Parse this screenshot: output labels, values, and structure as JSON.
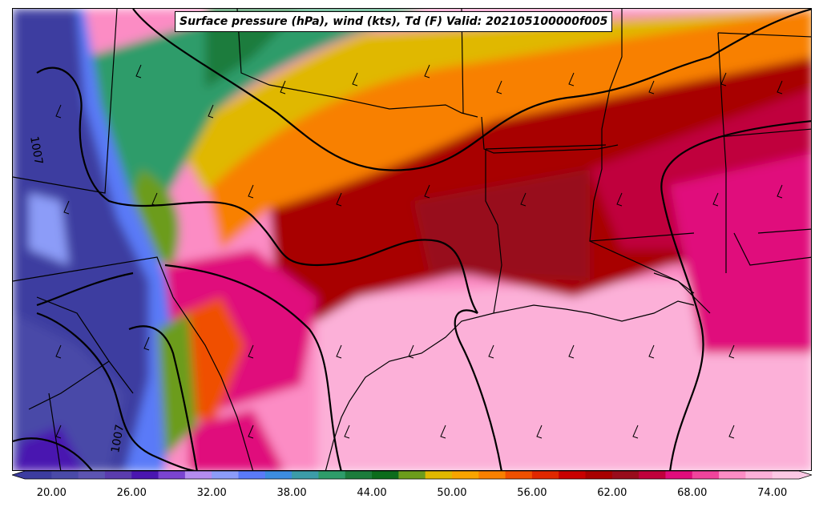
{
  "title": "Surface pressure (hPa), wind (kts), Td (F) Valid: 202105100000f005",
  "colorbar": {
    "min": 18,
    "max": 76,
    "step": 2,
    "tick_labels": [
      "20.00",
      "26.00",
      "32.00",
      "38.00",
      "44.00",
      "50.00",
      "56.00",
      "62.00",
      "68.00",
      "74.00"
    ],
    "colors": [
      "#3c3ca0",
      "#4a4aa8",
      "#5c54b2",
      "#5a3cae",
      "#4a16b0",
      "#7a44d0",
      "#b48cf0",
      "#8c9cf8",
      "#5a7af8",
      "#3c8ce0",
      "#3c9ca8",
      "#2e9c6a",
      "#1c7c3c",
      "#0c6c1c",
      "#6c9c1c",
      "#e0b800",
      "#f8a400",
      "#f88000",
      "#f05000",
      "#e02800",
      "#c80000",
      "#a80000",
      "#980c1c",
      "#c0003c",
      "#e00c7c",
      "#f0449c",
      "#fc8cc4",
      "#fcb0d8",
      "#fcc8e4"
    ]
  },
  "isobar_labels": [
    "1007",
    "1007"
  ],
  "legend_colors": {
    "frame": "#000000",
    "isobar": "#000000"
  }
}
